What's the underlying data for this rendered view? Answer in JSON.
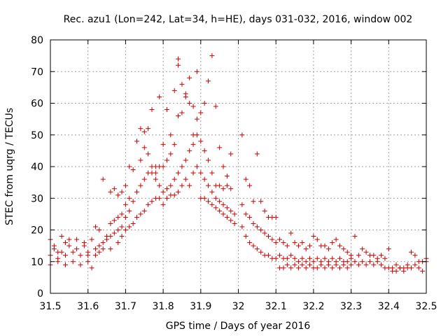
{
  "chart_data": {
    "type": "scatter",
    "title": "Rec. azu1 (Lon=242, Lat=34, h=HE), days 031-032, 2016, window 002",
    "xlabel": "GPS time / Days of year 2016",
    "ylabel": "STEC from uqrg / TECUs",
    "xlim": [
      31.5,
      32.5
    ],
    "ylim": [
      0,
      80
    ],
    "x_ticks": [
      31.5,
      31.6,
      31.7,
      31.8,
      31.9,
      32.0,
      32.1,
      32.2,
      32.3,
      32.4,
      32.5
    ],
    "x_tick_labels": [
      "31.5",
      "31.6",
      "31.7",
      "31.8",
      "31.9",
      "32",
      "32.1",
      "32.2",
      "32.3",
      "32.4",
      "32.5"
    ],
    "y_ticks": [
      0,
      10,
      20,
      30,
      40,
      50,
      60,
      70,
      80
    ],
    "y_tick_labels": [
      "0",
      "10",
      "20",
      "30",
      "40",
      "50",
      "60",
      "70",
      "80"
    ],
    "grid": true,
    "marker": "+",
    "color": "#cc0000",
    "series": [
      {
        "points": [
          [
            31.5,
            17
          ],
          [
            31.51,
            15
          ],
          [
            31.52,
            13
          ],
          [
            31.53,
            18
          ],
          [
            31.54,
            16
          ],
          [
            31.55,
            17
          ],
          [
            31.57,
            17
          ],
          [
            31.59,
            16
          ],
          [
            31.61,
            17
          ],
          [
            31.5,
            12
          ],
          [
            31.52,
            11
          ],
          [
            31.54,
            12
          ],
          [
            31.56,
            13
          ],
          [
            31.58,
            12
          ],
          [
            31.6,
            13
          ],
          [
            31.62,
            14
          ],
          [
            31.5,
            9
          ],
          [
            31.52,
            10
          ],
          [
            31.54,
            9
          ],
          [
            31.56,
            10
          ],
          [
            31.58,
            9
          ],
          [
            31.6,
            10
          ],
          [
            31.61,
            8
          ],
          [
            31.51,
            14
          ],
          [
            31.53,
            13
          ],
          [
            31.55,
            15
          ],
          [
            31.57,
            14
          ],
          [
            31.59,
            15
          ],
          [
            31.6,
            12
          ],
          [
            31.62,
            21
          ],
          [
            31.63,
            20
          ],
          [
            31.64,
            36
          ],
          [
            31.65,
            18
          ],
          [
            31.66,
            32
          ],
          [
            31.67,
            33
          ],
          [
            31.68,
            31
          ],
          [
            31.69,
            32
          ],
          [
            31.63,
            15
          ],
          [
            31.64,
            16
          ],
          [
            31.65,
            17
          ],
          [
            31.66,
            18
          ],
          [
            31.67,
            19
          ],
          [
            31.68,
            20
          ],
          [
            31.69,
            21
          ],
          [
            31.62,
            12
          ],
          [
            31.63,
            13
          ],
          [
            31.64,
            14
          ],
          [
            31.66,
            14
          ],
          [
            31.68,
            16
          ],
          [
            31.69,
            18
          ],
          [
            31.66,
            22
          ],
          [
            31.67,
            23
          ],
          [
            31.68,
            24
          ],
          [
            31.69,
            25
          ],
          [
            31.7,
            28
          ],
          [
            31.71,
            30
          ],
          [
            31.7,
            34
          ],
          [
            31.71,
            40
          ],
          [
            31.72,
            39
          ],
          [
            31.73,
            48
          ],
          [
            31.74,
            52
          ],
          [
            31.75,
            51
          ],
          [
            31.76,
            52
          ],
          [
            31.77,
            58
          ],
          [
            31.78,
            40
          ],
          [
            31.79,
            62
          ],
          [
            31.7,
            24
          ],
          [
            31.71,
            26
          ],
          [
            31.72,
            29
          ],
          [
            31.73,
            32
          ],
          [
            31.74,
            34
          ],
          [
            31.75,
            36
          ],
          [
            31.76,
            38
          ],
          [
            31.77,
            38
          ],
          [
            31.78,
            38
          ],
          [
            31.79,
            40
          ],
          [
            31.7,
            20
          ],
          [
            31.71,
            21
          ],
          [
            31.72,
            22
          ],
          [
            31.73,
            24
          ],
          [
            31.74,
            25
          ],
          [
            31.75,
            26
          ],
          [
            31.76,
            28
          ],
          [
            31.77,
            29
          ],
          [
            31.78,
            30
          ],
          [
            31.79,
            30
          ],
          [
            31.74,
            42
          ],
          [
            31.75,
            46
          ],
          [
            31.76,
            44
          ],
          [
            31.77,
            40
          ],
          [
            31.78,
            36
          ],
          [
            31.79,
            34
          ],
          [
            31.8,
            47
          ],
          [
            31.81,
            58
          ],
          [
            31.82,
            50
          ],
          [
            31.83,
            64
          ],
          [
            31.84,
            74
          ],
          [
            31.84,
            72
          ],
          [
            31.85,
            66
          ],
          [
            31.86,
            62
          ],
          [
            31.87,
            68
          ],
          [
            31.88,
            59
          ],
          [
            31.89,
            70
          ],
          [
            31.8,
            40
          ],
          [
            31.81,
            42
          ],
          [
            31.82,
            44
          ],
          [
            31.83,
            47
          ],
          [
            31.84,
            56
          ],
          [
            31.85,
            57
          ],
          [
            31.86,
            63
          ],
          [
            31.87,
            60
          ],
          [
            31.88,
            50
          ],
          [
            31.89,
            55
          ],
          [
            31.8,
            32
          ],
          [
            31.81,
            33
          ],
          [
            31.82,
            34
          ],
          [
            31.83,
            36
          ],
          [
            31.84,
            38
          ],
          [
            31.85,
            40
          ],
          [
            31.86,
            42
          ],
          [
            31.87,
            45
          ],
          [
            31.88,
            47
          ],
          [
            31.89,
            50
          ],
          [
            31.8,
            28
          ],
          [
            31.81,
            30
          ],
          [
            31.82,
            31
          ],
          [
            31.83,
            31
          ],
          [
            31.84,
            32
          ],
          [
            31.85,
            34
          ],
          [
            31.86,
            36
          ],
          [
            31.87,
            34
          ],
          [
            31.88,
            38
          ],
          [
            31.89,
            40
          ],
          [
            31.9,
            57
          ],
          [
            31.91,
            60
          ],
          [
            31.92,
            67
          ],
          [
            31.93,
            75
          ],
          [
            31.94,
            59
          ],
          [
            31.95,
            46
          ],
          [
            31.96,
            40
          ],
          [
            31.97,
            37
          ],
          [
            31.98,
            44
          ],
          [
            31.9,
            48
          ],
          [
            31.91,
            45
          ],
          [
            31.92,
            42
          ],
          [
            31.93,
            38
          ],
          [
            31.94,
            34
          ],
          [
            31.95,
            34
          ],
          [
            31.96,
            33
          ],
          [
            31.97,
            34
          ],
          [
            31.98,
            33
          ],
          [
            31.9,
            38
          ],
          [
            31.91,
            36
          ],
          [
            31.92,
            34
          ],
          [
            31.93,
            32
          ],
          [
            31.94,
            30
          ],
          [
            31.95,
            29
          ],
          [
            31.96,
            28
          ],
          [
            31.97,
            27
          ],
          [
            31.98,
            26
          ],
          [
            31.99,
            25
          ],
          [
            31.9,
            30
          ],
          [
            31.91,
            30
          ],
          [
            31.92,
            29
          ],
          [
            31.93,
            28
          ],
          [
            31.94,
            27
          ],
          [
            31.95,
            26
          ],
          [
            31.96,
            25
          ],
          [
            31.97,
            24
          ],
          [
            31.98,
            23
          ],
          [
            31.99,
            22
          ],
          [
            32.01,
            50
          ],
          [
            32.02,
            36
          ],
          [
            32.03,
            34
          ],
          [
            32.04,
            29
          ],
          [
            32.05,
            44
          ],
          [
            32.06,
            29
          ],
          [
            32.07,
            26
          ],
          [
            32.08,
            24
          ],
          [
            32.09,
            24
          ],
          [
            32.1,
            24
          ],
          [
            32.01,
            28
          ],
          [
            32.02,
            25
          ],
          [
            32.03,
            24
          ],
          [
            32.04,
            22
          ],
          [
            32.05,
            21
          ],
          [
            32.06,
            20
          ],
          [
            32.07,
            19
          ],
          [
            32.08,
            18
          ],
          [
            32.09,
            17
          ],
          [
            32.1,
            16
          ],
          [
            32.01,
            21
          ],
          [
            32.02,
            18
          ],
          [
            32.03,
            16
          ],
          [
            32.04,
            15
          ],
          [
            32.05,
            14
          ],
          [
            32.06,
            13
          ],
          [
            32.07,
            12
          ],
          [
            32.08,
            12
          ],
          [
            32.09,
            11
          ],
          [
            32.1,
            11
          ],
          [
            32.11,
            17
          ],
          [
            32.12,
            16
          ],
          [
            32.13,
            15
          ],
          [
            32.14,
            19
          ],
          [
            32.15,
            16
          ],
          [
            32.16,
            15
          ],
          [
            32.17,
            16
          ],
          [
            32.18,
            14
          ],
          [
            32.19,
            15
          ],
          [
            32.2,
            18
          ],
          [
            32.11,
            12
          ],
          [
            32.12,
            11
          ],
          [
            32.13,
            11
          ],
          [
            32.14,
            12
          ],
          [
            32.15,
            11
          ],
          [
            32.16,
            10
          ],
          [
            32.17,
            11
          ],
          [
            32.18,
            10
          ],
          [
            32.19,
            11
          ],
          [
            32.2,
            10
          ],
          [
            32.11,
            8
          ],
          [
            32.12,
            8
          ],
          [
            32.13,
            9
          ],
          [
            32.14,
            8
          ],
          [
            32.15,
            9
          ],
          [
            32.16,
            8
          ],
          [
            32.17,
            9
          ],
          [
            32.18,
            8
          ],
          [
            32.19,
            9
          ],
          [
            32.2,
            8
          ],
          [
            32.21,
            17
          ],
          [
            32.22,
            15
          ],
          [
            32.23,
            15
          ],
          [
            32.24,
            14
          ],
          [
            32.25,
            16
          ],
          [
            32.26,
            17
          ],
          [
            32.27,
            15
          ],
          [
            32.28,
            14
          ],
          [
            32.29,
            13
          ],
          [
            32.3,
            12
          ],
          [
            32.21,
            11
          ],
          [
            32.22,
            10
          ],
          [
            32.23,
            11
          ],
          [
            32.24,
            10
          ],
          [
            32.25,
            11
          ],
          [
            32.26,
            10
          ],
          [
            32.27,
            11
          ],
          [
            32.28,
            10
          ],
          [
            32.29,
            10
          ],
          [
            32.3,
            11
          ],
          [
            32.21,
            8
          ],
          [
            32.22,
            9
          ],
          [
            32.23,
            8
          ],
          [
            32.24,
            9
          ],
          [
            32.25,
            8
          ],
          [
            32.26,
            9
          ],
          [
            32.27,
            8
          ],
          [
            32.28,
            9
          ],
          [
            32.29,
            8
          ],
          [
            32.3,
            9
          ],
          [
            32.31,
            18
          ],
          [
            32.32,
            12
          ],
          [
            32.33,
            14
          ],
          [
            32.34,
            13
          ],
          [
            32.35,
            12
          ],
          [
            32.36,
            12
          ],
          [
            32.37,
            11
          ],
          [
            32.38,
            12
          ],
          [
            32.39,
            11
          ],
          [
            32.4,
            14
          ],
          [
            32.31,
            10
          ],
          [
            32.32,
            9
          ],
          [
            32.33,
            10
          ],
          [
            32.34,
            9
          ],
          [
            32.35,
            10
          ],
          [
            32.36,
            9
          ],
          [
            32.37,
            10
          ],
          [
            32.38,
            9
          ],
          [
            32.39,
            8
          ],
          [
            32.4,
            8
          ],
          [
            32.41,
            8
          ],
          [
            32.42,
            9
          ],
          [
            32.43,
            8
          ],
          [
            32.44,
            8
          ],
          [
            32.45,
            9
          ],
          [
            32.46,
            13
          ],
          [
            32.47,
            12
          ],
          [
            32.48,
            10
          ],
          [
            32.49,
            10
          ],
          [
            32.5,
            10
          ],
          [
            32.41,
            7
          ],
          [
            32.42,
            7
          ],
          [
            32.43,
            8
          ],
          [
            32.44,
            7
          ],
          [
            32.45,
            8
          ],
          [
            32.46,
            8
          ],
          [
            32.47,
            9
          ],
          [
            32.48,
            8
          ],
          [
            32.49,
            7
          ],
          [
            32.5,
            11
          ]
        ]
      }
    ]
  }
}
